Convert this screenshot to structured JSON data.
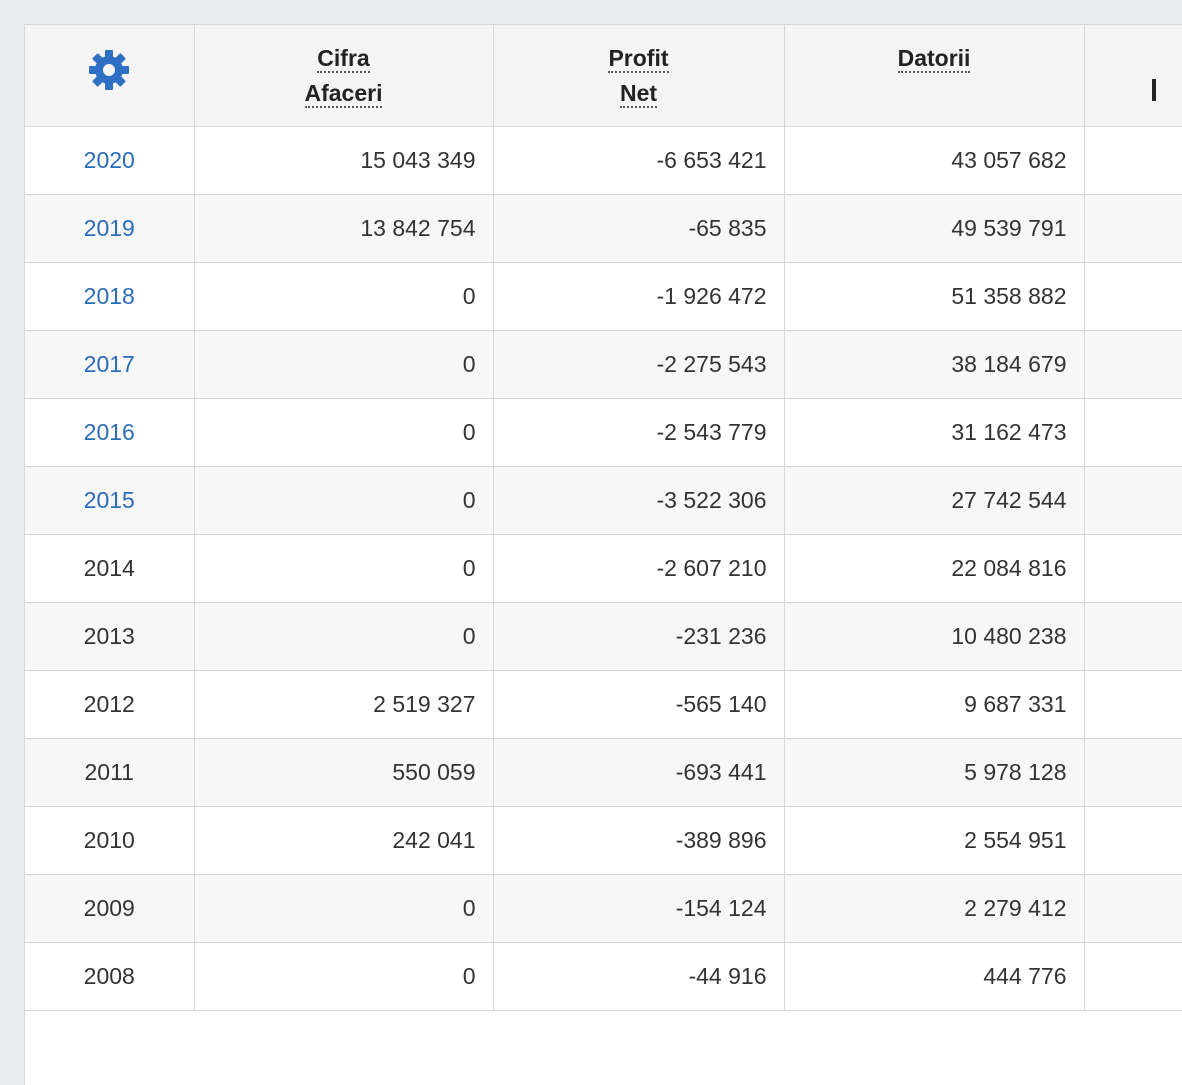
{
  "header": {
    "settings_icon": "gear-icon",
    "columns": [
      {
        "line1": "Cifra",
        "line2": "Afaceri"
      },
      {
        "line1": "Profit",
        "line2": "Net"
      },
      {
        "line1": "Datorii",
        "line2": ""
      }
    ]
  },
  "rows": [
    {
      "year": "2020",
      "linked": true,
      "cifra": "15 043 349",
      "profit": "-6 653 421",
      "datorii": "43 057 682"
    },
    {
      "year": "2019",
      "linked": true,
      "cifra": "13 842 754",
      "profit": "-65 835",
      "datorii": "49 539 791"
    },
    {
      "year": "2018",
      "linked": true,
      "cifra": "0",
      "profit": "-1 926 472",
      "datorii": "51 358 882"
    },
    {
      "year": "2017",
      "linked": true,
      "cifra": "0",
      "profit": "-2 275 543",
      "datorii": "38 184 679"
    },
    {
      "year": "2016",
      "linked": true,
      "cifra": "0",
      "profit": "-2 543 779",
      "datorii": "31 162 473"
    },
    {
      "year": "2015",
      "linked": true,
      "cifra": "0",
      "profit": "-3 522 306",
      "datorii": "27 742 544"
    },
    {
      "year": "2014",
      "linked": false,
      "cifra": "0",
      "profit": "-2 607 210",
      "datorii": "22 084 816"
    },
    {
      "year": "2013",
      "linked": false,
      "cifra": "0",
      "profit": "-231 236",
      "datorii": "10 480 238"
    },
    {
      "year": "2012",
      "linked": false,
      "cifra": "2 519 327",
      "profit": "-565 140",
      "datorii": "9 687 331"
    },
    {
      "year": "2011",
      "linked": false,
      "cifra": "550 059",
      "profit": "-693 441",
      "datorii": "5 978 128"
    },
    {
      "year": "2010",
      "linked": false,
      "cifra": "242 041",
      "profit": "-389 896",
      "datorii": "2 554 951"
    },
    {
      "year": "2009",
      "linked": false,
      "cifra": "0",
      "profit": "-154 124",
      "datorii": "2 279 412"
    },
    {
      "year": "2008",
      "linked": false,
      "cifra": "0",
      "profit": "-44 916",
      "datorii": "444 776"
    }
  ],
  "colors": {
    "link": "#2b6cb8",
    "gear": "#2f6fc4"
  }
}
